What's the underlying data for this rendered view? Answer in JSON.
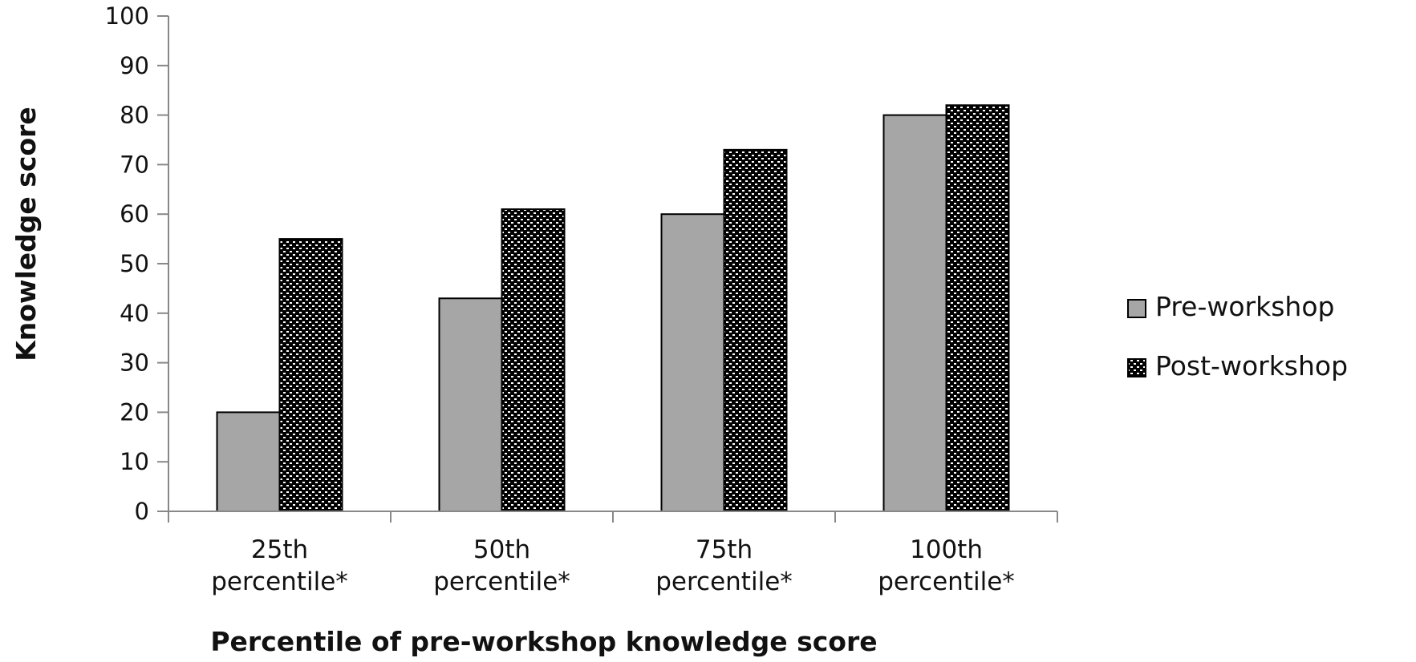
{
  "chart_data": {
    "type": "bar",
    "categories": [
      [
        "25th",
        "percentile*"
      ],
      [
        "50th",
        "percentile*"
      ],
      [
        "75th",
        "percentile*"
      ],
      [
        "100th",
        "percentile*"
      ]
    ],
    "series": [
      {
        "name": "Pre-workshop",
        "values": [
          20,
          43,
          60,
          80
        ],
        "color": "#a6a6a6",
        "pattern": "solid"
      },
      {
        "name": "Post-workshop",
        "values": [
          55,
          61,
          73,
          82
        ],
        "color": "#000000",
        "pattern": "dots"
      }
    ],
    "xlabel": "Percentile of pre-workshop knowledge score",
    "ylabel": "Knowledge score",
    "ylim": [
      0,
      100
    ],
    "yticks": [
      0,
      10,
      20,
      30,
      40,
      50,
      60,
      70,
      80,
      90,
      100
    ],
    "grid": false,
    "legend": "right"
  }
}
